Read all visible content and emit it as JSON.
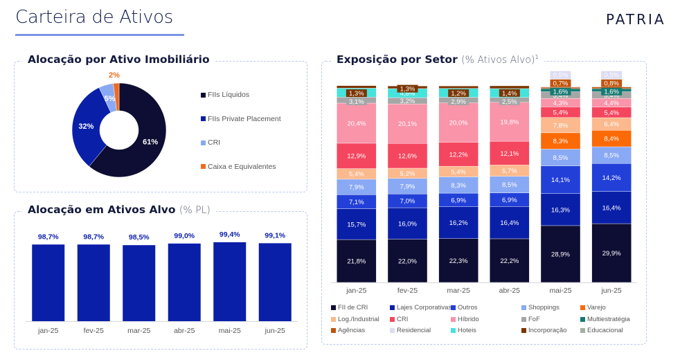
{
  "header": {
    "title": "Carteira de Ativos",
    "logo_text": "PATRIA"
  },
  "panels": {
    "allocation_asset": {
      "title": "Alocação por Ativo Imobiliário"
    },
    "allocation_target": {
      "title": "Alocação em Ativos Alvo",
      "subtitle": "(% PL)"
    },
    "sector_exposure": {
      "title": "Exposição por Setor",
      "subtitle": "(% Ativos Alvo)",
      "footnote_mark": "1"
    }
  },
  "chart_data": [
    {
      "id": "donut",
      "type": "pie",
      "title": "Alocação por Ativo Imobiliário",
      "slices": [
        {
          "label": "FIIs Líquidos",
          "value": 61,
          "display": "61%",
          "color": "#0e0d33",
          "label_color": "#ffffff"
        },
        {
          "label": "FIIs Private Placement",
          "value": 32,
          "display": "32%",
          "color": "#0a1fa8",
          "label_color": "#ffffff"
        },
        {
          "label": "CRI",
          "value": 5,
          "display": "5%",
          "color": "#8aa9f4",
          "label_color": "#ffffff"
        },
        {
          "label": "Caixa e Equivalentes",
          "value": 2,
          "display": "2%",
          "color": "#f26b1d",
          "label_color": "#f26b1d"
        }
      ],
      "legend_position": "right"
    },
    {
      "id": "target_allocation",
      "type": "bar",
      "title": "Alocação em Ativos Alvo (% PL)",
      "categories": [
        "jan-25",
        "fev-25",
        "mar-25",
        "abr-25",
        "mai-25",
        "jun-25"
      ],
      "values": [
        98.7,
        98.7,
        98.5,
        99.0,
        99.4,
        99.1
      ],
      "labels": [
        "98,7%",
        "98,7%",
        "98,5%",
        "99,0%",
        "99,4%",
        "99,1%"
      ],
      "color": "#0a1fa8",
      "ylim": [
        0,
        100
      ]
    },
    {
      "id": "sector_exposure",
      "type": "bar",
      "stacked": true,
      "title": "Exposição por Setor (% Ativos Alvo)",
      "categories": [
        "jan-25",
        "fev-25",
        "mar-25",
        "abr-25",
        "mai-25",
        "jun-25"
      ],
      "series": [
        {
          "name": "FII de CRI",
          "color": "#0e0d33",
          "values": [
            21.8,
            22.0,
            22.3,
            22.2,
            28.9,
            29.9
          ]
        },
        {
          "name": "Lajes Corporativas",
          "color": "#0a1fa8",
          "values": [
            15.7,
            16.0,
            16.2,
            16.4,
            16.3,
            16.4
          ]
        },
        {
          "name": "Outros",
          "color": "#2240d8",
          "values": [
            7.1,
            7.0,
            6.9,
            6.9,
            14.1,
            14.2
          ]
        },
        {
          "name": "Shoppings",
          "color": "#8aa9f4",
          "values": [
            7.9,
            7.9,
            8.3,
            8.5,
            8.5,
            8.5
          ]
        },
        {
          "name": "Varejo",
          "color": "#fb6a06",
          "values": [
            0,
            0,
            0,
            0,
            8.3,
            8.4
          ]
        },
        {
          "name": "Log./Industrial",
          "color": "#fbb98d",
          "values": [
            5.4,
            5.2,
            5.4,
            5.7,
            7.8,
            6.4
          ]
        },
        {
          "name": "CRI",
          "color": "#f5465f",
          "values": [
            12.9,
            12.6,
            12.2,
            12.1,
            5.4,
            5.4
          ]
        },
        {
          "name": "Híbrido",
          "color": "#f994a9",
          "values": [
            20.4,
            20.1,
            20.0,
            19.8,
            4.3,
            4.4
          ]
        },
        {
          "name": "FoF",
          "color": "#a6a6a6",
          "values": [
            3.1,
            3.2,
            2.9,
            2.5,
            3.4,
            3.4
          ]
        },
        {
          "name": "Multiestratégia",
          "color": "#177a72",
          "values": [
            0,
            0,
            0,
            0,
            1.6,
            1.6
          ]
        },
        {
          "name": "Agências",
          "color": "#c0540c",
          "values": [
            0,
            0,
            0,
            0,
            0.7,
            0.8
          ]
        },
        {
          "name": "Residencial",
          "color": "#dcdcf3",
          "values": [
            0,
            0,
            0,
            0,
            0.5,
            0.5
          ]
        },
        {
          "name": "Hoteis",
          "color": "#44e3dc",
          "values": [
            4.5,
            4.6,
            4.5,
            4.5,
            0,
            0
          ]
        },
        {
          "name": "Incorporação",
          "color": "#7a3500",
          "values": [
            1.3,
            1.3,
            1.2,
            1.4,
            0,
            0
          ]
        },
        {
          "name": "Educacional",
          "color": "#a4b0a4",
          "values": [
            0,
            0,
            0,
            0,
            0,
            0
          ]
        }
      ],
      "labels": {
        "FII de CRI": [
          "21,8%",
          "22,0%",
          "22,3%",
          "22,2%",
          "28,9%",
          "29,9%"
        ],
        "Lajes Corporativas": [
          "15,7%",
          "16,0%",
          "16,2%",
          "16,4%",
          "16,3%",
          "16,4%"
        ],
        "Outros": [
          "7,1%",
          "7,0%",
          "6,9%",
          "6,9%",
          "14,1%",
          "14,2%"
        ],
        "Shoppings": [
          "7,9%",
          "7,9%",
          "8,3%",
          "8,5%",
          "8,5%",
          "8,5%"
        ],
        "Varejo": [
          "",
          "",
          "",
          "",
          "8,3%",
          "8,4%"
        ],
        "Log./Industrial": [
          "5,4%",
          "5,2%",
          "5,4%",
          "5,7%",
          "7,8%",
          "6,4%"
        ],
        "CRI": [
          "12,9%",
          "12,6%",
          "12,2%",
          "12,1%",
          "5,4%",
          "5,4%"
        ],
        "Híbrido": [
          "20,4%",
          "20,1%",
          "20,0%",
          "19,8%",
          "4,3%",
          "4,4%"
        ],
        "FoF": [
          "3,1%",
          "3,2%",
          "2,9%",
          "2,5%",
          "3,4%",
          "3,4%"
        ],
        "Multiestratégia": [
          "",
          "",
          "",
          "",
          "1,6%",
          "1,6%"
        ],
        "Agências": [
          "",
          "",
          "",
          "",
          "0,7%",
          "0,8%"
        ],
        "Residencial": [
          "",
          "",
          "",
          "",
          "0,5%",
          "0,5%"
        ],
        "Hoteis": [
          "4,5%",
          "4,6%",
          "4,5%",
          "4,5%",
          "",
          ""
        ],
        "Incorporação": [
          "1,3%",
          "1,3%",
          "1,2%",
          "1,4%",
          "",
          ""
        ],
        "Educacional": [
          "",
          "",
          "",
          "",
          "",
          ""
        ]
      },
      "legend_order": [
        "FII de CRI",
        "Lajes Corporativas",
        "Outros",
        "Shoppings",
        "Varejo",
        "Log./Industrial",
        "CRI",
        "Híbrido",
        "FoF",
        "Multiestratégia",
        "Agências",
        "Residencial",
        "Hoteis",
        "Incorporação",
        "Educacional"
      ],
      "legend_position": "bottom",
      "ylim": [
        0,
        100
      ]
    }
  ]
}
